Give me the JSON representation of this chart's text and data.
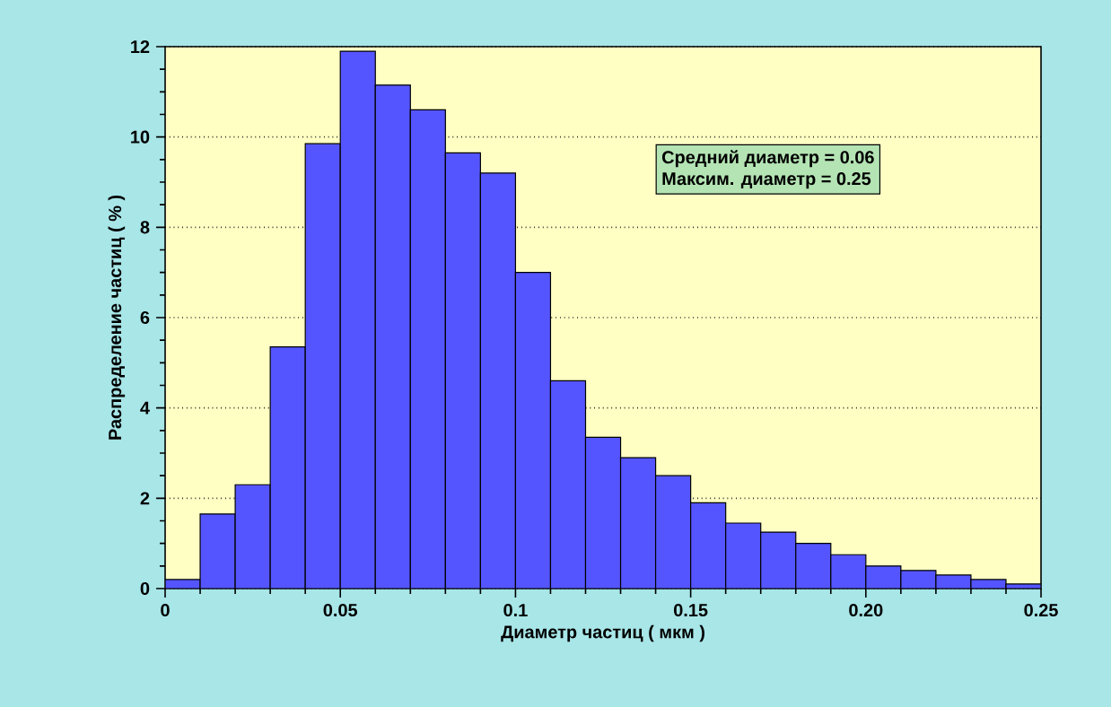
{
  "chart_data": {
    "type": "histogram",
    "xlabel": "Диаметр  частиц ( мкм )",
    "ylabel": "Распределение  частиц ( % )",
    "annotations": [
      "Средний диаметр = 0.06",
      "Максим. диаметр = 0.25"
    ],
    "bins": [
      0,
      0.01,
      0.02,
      0.03,
      0.04,
      0.05,
      0.06,
      0.07,
      0.08,
      0.09,
      0.1,
      0.11,
      0.12,
      0.13,
      0.14,
      0.15,
      0.16,
      0.17,
      0.18,
      0.19,
      0.2,
      0.21,
      0.22,
      0.23,
      0.24,
      0.25
    ],
    "values": [
      0.2,
      1.65,
      2.3,
      5.35,
      9.85,
      11.9,
      11.15,
      10.6,
      9.65,
      9.2,
      7.0,
      4.6,
      3.35,
      2.9,
      2.5,
      1.9,
      1.45,
      1.25,
      1.0,
      0.75,
      0.5,
      0.4,
      0.3,
      0.2,
      0.1
    ],
    "color": "#5555ff",
    "xlim": [
      0,
      0.25
    ],
    "ylim": [
      0,
      12
    ],
    "xticks": [
      0,
      0.05,
      0.1,
      0.15,
      {
        "value": 0.2,
        "label": "0.20"
      },
      0.25
    ],
    "yticks": [
      0,
      2,
      4,
      6,
      8,
      10,
      12
    ],
    "grid": "y"
  }
}
